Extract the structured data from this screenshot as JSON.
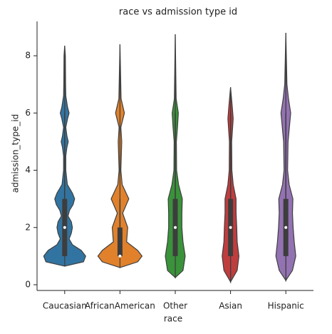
{
  "chart_data": {
    "type": "violin",
    "title": "race vs admission type id",
    "xlabel": "race",
    "ylabel": "admission_type_id",
    "categories": [
      "Caucasian",
      "AfricanAmerican",
      "Other",
      "Asian",
      "Hispanic"
    ],
    "ylim": [
      -0.2,
      9.2
    ],
    "yticks": [
      0,
      2,
      4,
      6,
      8
    ],
    "series": [
      {
        "color": "#3274a1",
        "q1": 1,
        "median": 2,
        "q3": 3,
        "whisker_low": 1,
        "whisker_high": 6,
        "shape_y": [
          0.65,
          0.8,
          1.0,
          1.2,
          1.4,
          1.6,
          1.8,
          2.0,
          2.2,
          2.4,
          2.6,
          2.8,
          3.0,
          3.2,
          3.5,
          4,
          4.5,
          4.8,
          5,
          5.2,
          5.5,
          5.8,
          6,
          6.2,
          6.6,
          7,
          8,
          8.35
        ],
        "shape_w": [
          0,
          0.85,
          0.95,
          0.75,
          0.35,
          0.2,
          0.3,
          0.35,
          0.3,
          0.15,
          0.22,
          0.38,
          0.45,
          0.35,
          0.12,
          0.05,
          0.05,
          0.1,
          0.16,
          0.1,
          0.05,
          0.13,
          0.2,
          0.13,
          0.05,
          0.04,
          0.03,
          0
        ]
      },
      {
        "color": "#e1812c",
        "q1": 1,
        "median": 1,
        "q3": 2,
        "whisker_low": 1,
        "whisker_high": 3,
        "shape_y": [
          0.6,
          0.8,
          1.0,
          1.2,
          1.5,
          2,
          2.5,
          3,
          3.5,
          4,
          5,
          5.5,
          6,
          6.5,
          8.4
        ],
        "shape_w": [
          0,
          0.8,
          1.0,
          0.8,
          0.3,
          0.35,
          0.12,
          0.4,
          0.1,
          0.04,
          0.08,
          0.04,
          0.2,
          0.05,
          0
        ]
      },
      {
        "color": "#3a923a",
        "q1": 1,
        "median": 2,
        "q3": 3,
        "whisker_low": 1,
        "whisker_high": 6,
        "shape_y": [
          0.25,
          0.5,
          1,
          1.5,
          2,
          2.5,
          3,
          3.5,
          4,
          5,
          5.5,
          6,
          6.5,
          8.75
        ],
        "shape_w": [
          0,
          0.35,
          0.45,
          0.35,
          0.3,
          0.3,
          0.32,
          0.15,
          0.06,
          0.05,
          0.1,
          0.14,
          0.04,
          0
        ]
      },
      {
        "color": "#c03d3e",
        "q1": 1,
        "median": 2,
        "q3": 3,
        "whisker_low": 1,
        "whisker_high": 6,
        "shape_y": [
          0.1,
          0.5,
          1,
          1.5,
          2,
          2.5,
          3,
          3.5,
          4,
          5,
          5.8,
          6.2,
          6.9
        ],
        "shape_w": [
          0,
          0.3,
          0.38,
          0.3,
          0.28,
          0.25,
          0.25,
          0.12,
          0.06,
          0.05,
          0.12,
          0.08,
          0
        ]
      },
      {
        "color": "#9372b2",
        "q1": 1,
        "median": 2,
        "q3": 3,
        "whisker_low": 1,
        "whisker_high": 6,
        "shape_y": [
          0.15,
          0.5,
          1,
          1.5,
          2,
          2.5,
          3,
          3.5,
          4,
          5,
          6,
          6.5,
          7,
          8.8
        ],
        "shape_w": [
          0,
          0.3,
          0.45,
          0.38,
          0.33,
          0.3,
          0.32,
          0.15,
          0.08,
          0.1,
          0.22,
          0.12,
          0.05,
          0
        ]
      }
    ]
  }
}
